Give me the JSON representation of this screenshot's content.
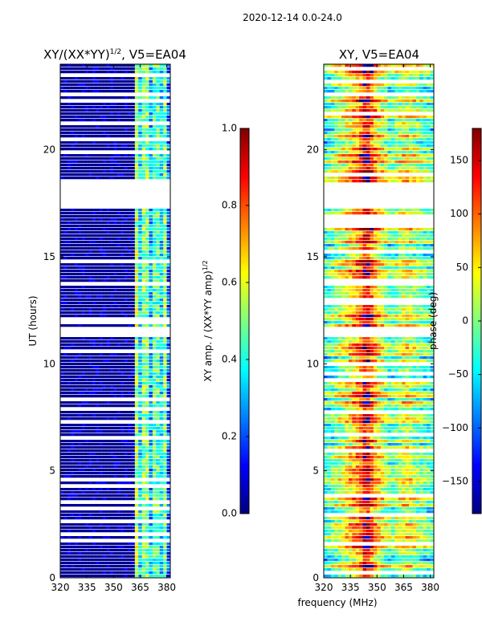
{
  "figure": {
    "suptitle": "2020-12-14 0.0-24.0",
    "xlabel_shared": "frequency (MHz)"
  },
  "colors": {
    "jet": [
      "#00007f",
      "#0000ff",
      "#007fff",
      "#00ffff",
      "#7fff7f",
      "#ffff00",
      "#ff7f00",
      "#ff0000",
      "#7f0000"
    ],
    "gap": "#ffffff",
    "frame": "#000000"
  },
  "chart_data": [
    {
      "type": "heatmap",
      "title": "XY/(XX*YY)",
      "title_sup": "1/2",
      "title_suffix": ", V5=EA04",
      "xlabel": "",
      "ylabel": "UT (hours)",
      "xlim": [
        320,
        382
      ],
      "ylim": [
        0,
        24
      ],
      "xticks": [
        320,
        335,
        350,
        365,
        380
      ],
      "yticks": [
        0,
        5,
        10,
        15,
        20
      ],
      "colorbar": {
        "label": "XY amp. / (XX*YY amp)",
        "label_sup": "1/2",
        "range": [
          0.0,
          1.0
        ],
        "ticks": [
          "0.0",
          "0.2",
          "0.4",
          "0.6",
          "0.8",
          "1.0"
        ]
      },
      "bands": [
        {
          "from": 320,
          "to": 362,
          "level": 0.05
        },
        {
          "from": 362,
          "to": 364,
          "level": 0.55
        },
        {
          "from": 364,
          "to": 367,
          "level": 0.35
        },
        {
          "from": 367,
          "to": 370,
          "level": 0.5
        },
        {
          "from": 370,
          "to": 372,
          "level": 0.3
        },
        {
          "from": 372,
          "to": 376,
          "level": 0.45
        },
        {
          "from": 376,
          "to": 378,
          "level": 0.35
        },
        {
          "from": 378,
          "to": 380,
          "level": 0.5
        },
        {
          "from": 380,
          "to": 382,
          "level": 0.2
        }
      ],
      "gaps_hours": [
        [
          17.2,
          18.4
        ],
        [
          11.3,
          11.7
        ]
      ]
    },
    {
      "type": "heatmap",
      "title": "XY, V5=EA04",
      "xlabel": "frequency (MHz)",
      "ylabel": "",
      "xlim": [
        320,
        382
      ],
      "ylim": [
        0,
        24
      ],
      "xticks": [
        320,
        335,
        350,
        365,
        380
      ],
      "yticks": [
        0,
        5,
        10,
        15,
        20
      ],
      "colorbar": {
        "label": "phase (deg)",
        "range": [
          -180,
          180
        ],
        "ticks": [
          "−150",
          "−100",
          "−50",
          "0",
          "50",
          "100",
          "150"
        ]
      },
      "phase_profile": [
        {
          "freq": 320,
          "deg": -40
        },
        {
          "freq": 330,
          "deg": 20
        },
        {
          "freq": 340,
          "deg": 90
        },
        {
          "freq": 344,
          "deg": 160
        },
        {
          "freq": 350,
          "deg": 60
        },
        {
          "freq": 358,
          "deg": -20
        },
        {
          "freq": 366,
          "deg": 40
        },
        {
          "freq": 374,
          "deg": 0
        },
        {
          "freq": 382,
          "deg": -30
        }
      ],
      "gaps_hours": [
        [
          17.2,
          18.4
        ],
        [
          11.3,
          11.7
        ]
      ]
    }
  ]
}
